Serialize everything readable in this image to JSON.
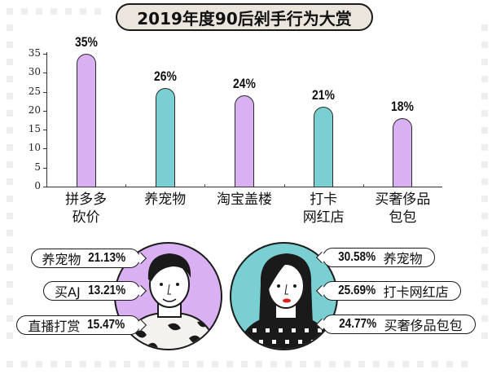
{
  "title": "2019年度90后剁手行为大赏",
  "colors": {
    "purple": "#d9b0f2",
    "teal": "#79cfd2",
    "title_bg": "#ece5dd",
    "outline": "#1a1a1a"
  },
  "chart_data": {
    "type": "bar",
    "title": "2019年度90后剁手行为大赏",
    "categories": [
      "拼多多砍价",
      "养宠物",
      "淘宝盖楼",
      "打卡网红店",
      "买奢侈品包包"
    ],
    "category_lines": [
      [
        "拼多多",
        "砍价"
      ],
      [
        "养宠物"
      ],
      [
        "淘宝盖楼"
      ],
      [
        "打卡",
        "网红店"
      ],
      [
        "买奢侈品",
        "包包"
      ]
    ],
    "values": [
      35,
      26,
      24,
      21,
      18
    ],
    "value_labels": [
      "35%",
      "26%",
      "24%",
      "21%",
      "18%"
    ],
    "bar_colors": [
      "#d9b0f2",
      "#79cfd2",
      "#d9b0f2",
      "#79cfd2",
      "#d9b0f2"
    ],
    "yticks": [
      "0",
      "5",
      "10",
      "15",
      "20",
      "25",
      "30",
      "35"
    ],
    "ylim": [
      0,
      35
    ],
    "xlabel": "",
    "ylabel": "",
    "grid": false,
    "legend": null
  },
  "male": {
    "items": [
      {
        "label": "养宠物",
        "value": "21.13%"
      },
      {
        "label": "买AJ",
        "value": "13.21%"
      },
      {
        "label": "直播打赏",
        "value": "15.47%"
      }
    ]
  },
  "female": {
    "items": [
      {
        "label": "养宠物",
        "value": "30.58%"
      },
      {
        "label": "打卡网红店",
        "value": "25.69%"
      },
      {
        "label": "买奢侈品包包",
        "value": "24.77%"
      }
    ]
  }
}
